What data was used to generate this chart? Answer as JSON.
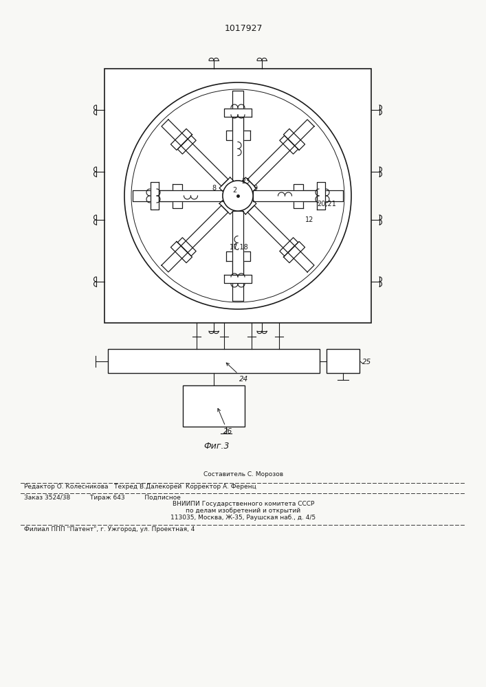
{
  "patent_number": "1017927",
  "figure_label": "Фиг.3",
  "bg_color": "#f8f8f5",
  "line_color": "#1a1a1a",
  "footer_line1_center": "Составитель С. Морозов",
  "footer_line2": "Редактор О. Колесникова   Техред В.Далекорей  Корректор А. Ференц",
  "footer_line3": "Заказ 3524/38          Тираж 643          Подписное",
  "footer_line4": "ВНИИПИ Государственного комитета СССР",
  "footer_line5": "по делам изобретений и открытий",
  "footer_line6": "113035, Москва, Ж-35, Раушская наб., д. 4/5",
  "footer_line7": "Филиал ППП \"Патент\", г. Ужгород, ул. Проектная, 4"
}
